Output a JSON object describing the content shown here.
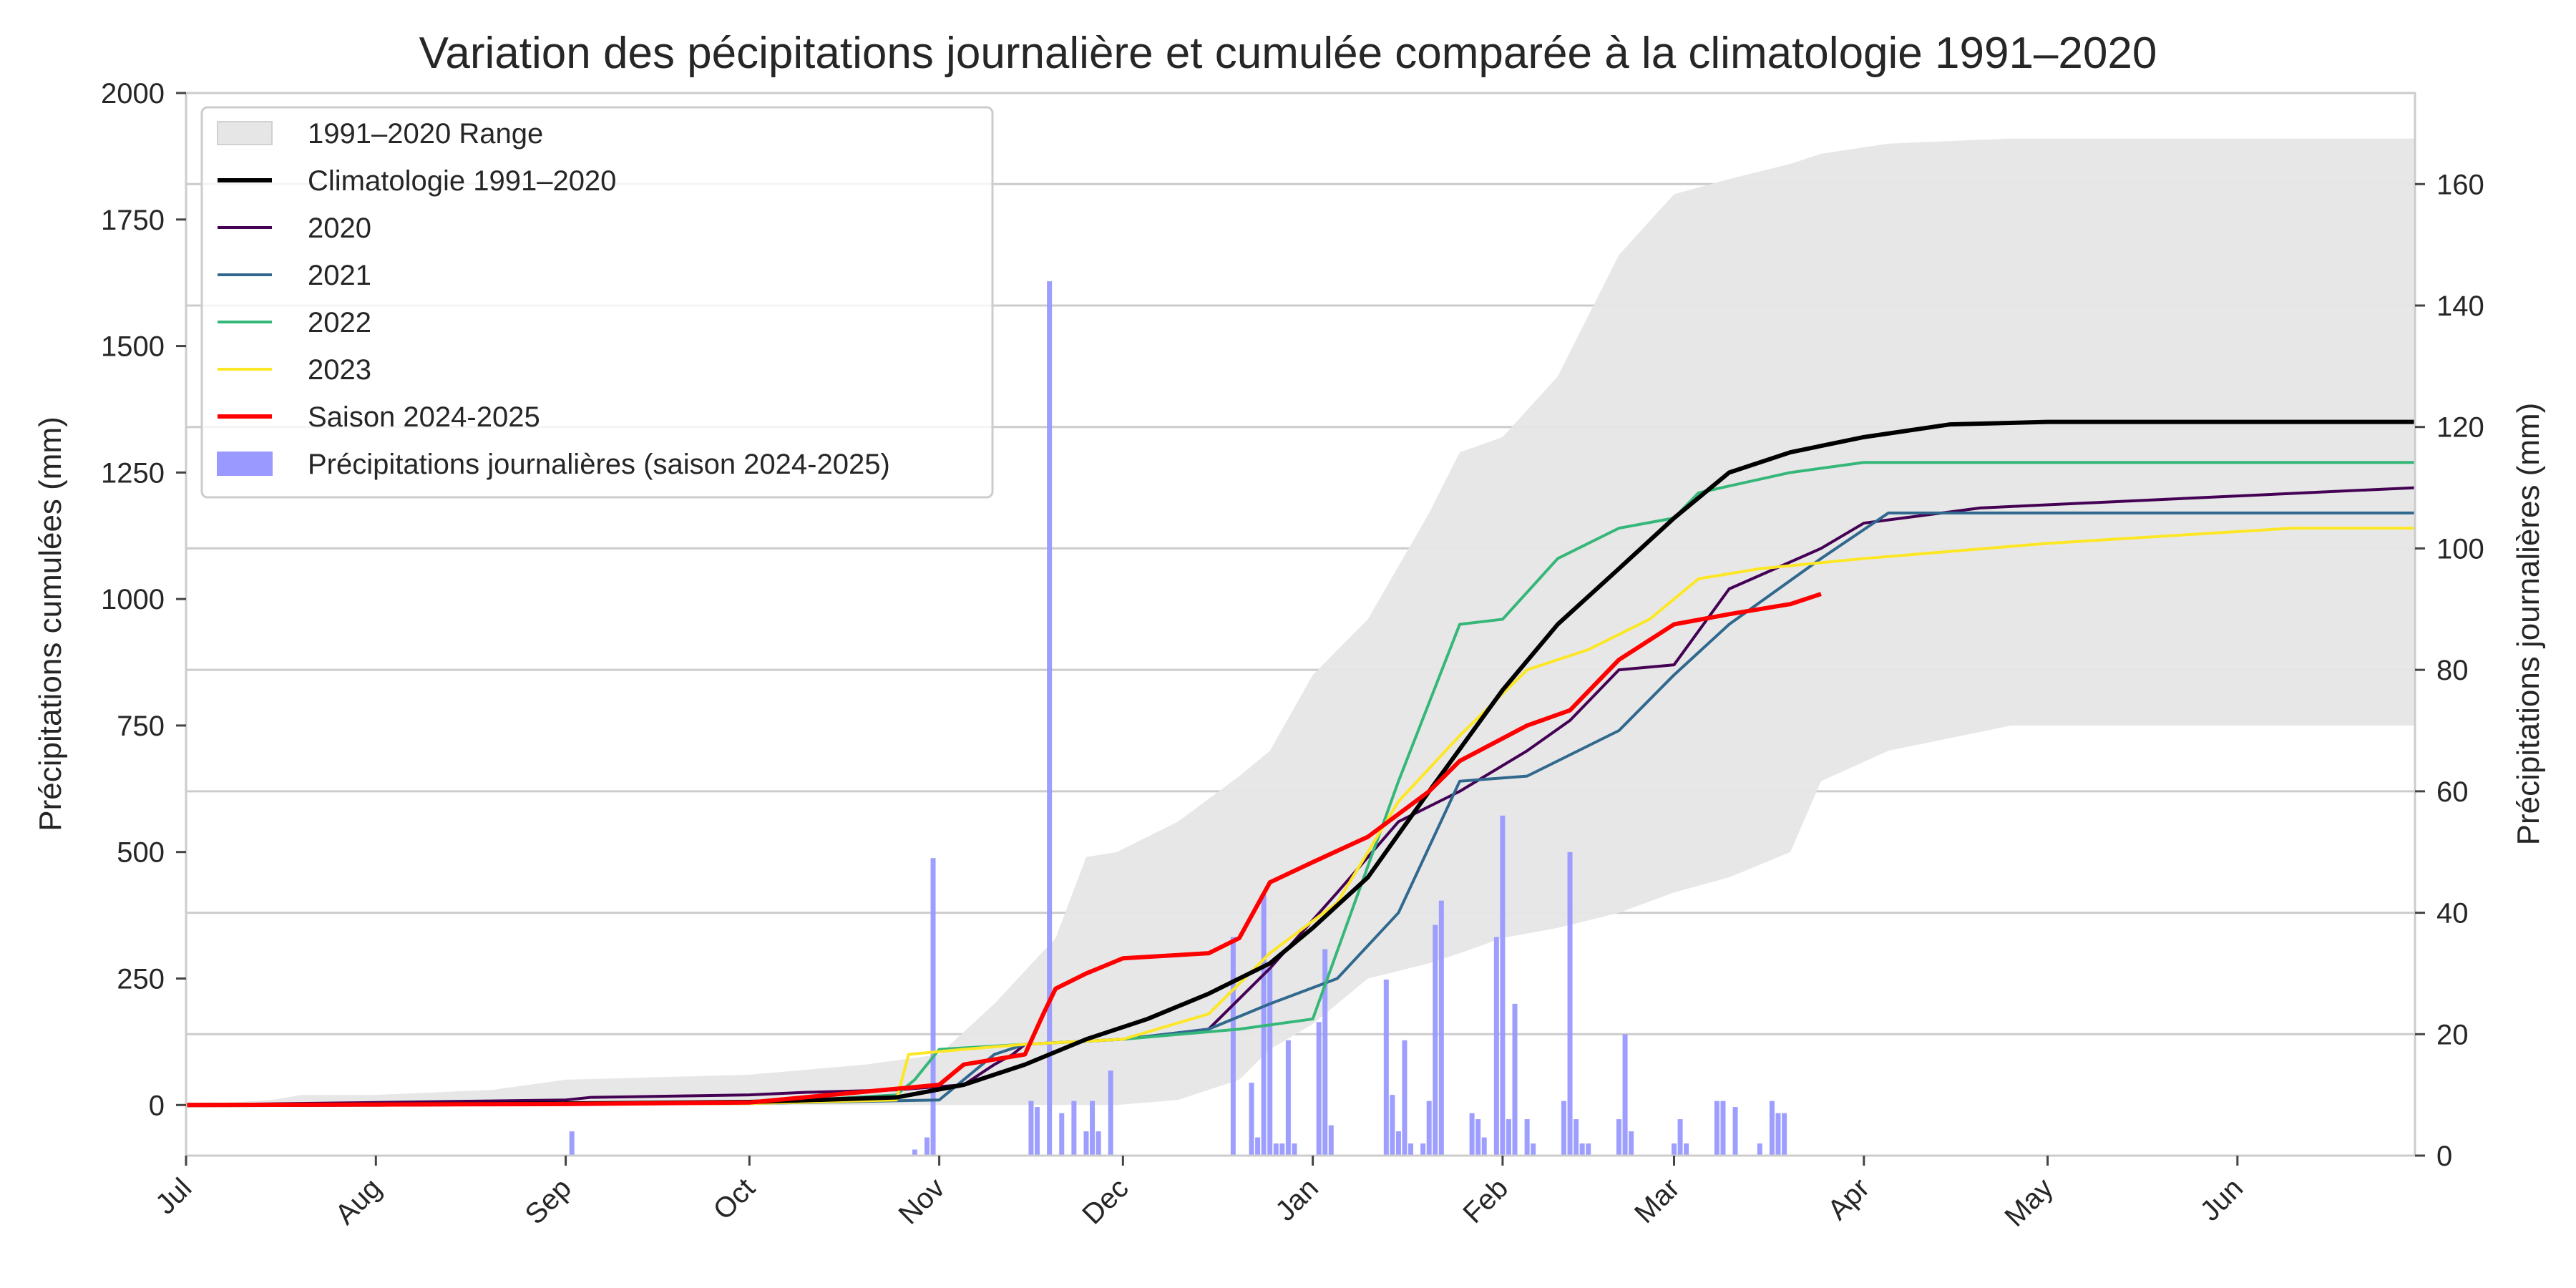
{
  "chart_data": {
    "type": "line",
    "title": "Variation des pécipitations journalière et cumulée comparée à la climatologie 1991–2020",
    "ylabel": "Précipitations cumulées (mm)",
    "y2label": "Précipitations journalières (mm)",
    "x_range": [
      "2024-07-01",
      "2025-06-30"
    ],
    "x_ticks": [
      {
        "date": "2024-07-01",
        "label": "Jul"
      },
      {
        "date": "2024-08-01",
        "label": "Aug"
      },
      {
        "date": "2024-09-01",
        "label": "Sep"
      },
      {
        "date": "2024-10-01",
        "label": "Oct"
      },
      {
        "date": "2024-11-01",
        "label": "Nov"
      },
      {
        "date": "2024-12-01",
        "label": "Dec"
      },
      {
        "date": "2025-01-01",
        "label": "Jan"
      },
      {
        "date": "2025-02-01",
        "label": "Feb"
      },
      {
        "date": "2025-03-01",
        "label": "Mar"
      },
      {
        "date": "2025-04-01",
        "label": "Apr"
      },
      {
        "date": "2025-05-01",
        "label": "May"
      },
      {
        "date": "2025-06-01",
        "label": "Jun"
      }
    ],
    "ylim": [
      -100,
      2000
    ],
    "y_ticks": [
      0,
      250,
      500,
      750,
      1000,
      1250,
      1500,
      1750,
      2000
    ],
    "y2lim": [
      0,
      175
    ],
    "y2_ticks": [
      0,
      20,
      40,
      60,
      80,
      100,
      120,
      140,
      160
    ],
    "grid": "on",
    "legend_position": "top-left",
    "range_band": {
      "name": "1991–2020 Range",
      "color": "#e6e6e6",
      "x": [
        "2024-07-01",
        "2024-07-15",
        "2024-07-20",
        "2024-08-01",
        "2024-08-20",
        "2024-09-01",
        "2024-10-01",
        "2024-10-20",
        "2024-11-01",
        "2024-11-10",
        "2024-11-20",
        "2024-11-25",
        "2024-11-30",
        "2024-12-10",
        "2024-12-20",
        "2024-12-25",
        "2025-01-01",
        "2025-01-10",
        "2025-01-20",
        "2025-01-25",
        "2025-02-01",
        "2025-02-10",
        "2025-02-20",
        "2025-03-01",
        "2025-03-10",
        "2025-03-20",
        "2025-03-25",
        "2025-04-05",
        "2025-04-25",
        "2025-05-10",
        "2025-06-30"
      ],
      "upper": [
        0,
        10,
        20,
        20,
        30,
        50,
        60,
        80,
        100,
        200,
        330,
        490,
        500,
        560,
        650,
        700,
        850,
        960,
        1170,
        1290,
        1320,
        1440,
        1680,
        1800,
        1830,
        1860,
        1880,
        1900,
        1910,
        1910,
        1910
      ],
      "lower": [
        0,
        0,
        0,
        0,
        0,
        0,
        0,
        0,
        0,
        0,
        0,
        0,
        0,
        10,
        50,
        110,
        160,
        250,
        280,
        300,
        330,
        350,
        380,
        420,
        450,
        500,
        640,
        700,
        750,
        750,
        750
      ]
    },
    "series": [
      {
        "name": "Climatologie 1991–2020",
        "color": "#000000",
        "width": 6,
        "x": [
          "2024-07-01",
          "2024-08-01",
          "2024-09-01",
          "2024-10-01",
          "2024-10-25",
          "2024-11-05",
          "2024-11-15",
          "2024-11-25",
          "2024-12-05",
          "2024-12-15",
          "2024-12-25",
          "2025-01-01",
          "2025-01-10",
          "2025-01-20",
          "2025-02-01",
          "2025-02-10",
          "2025-02-20",
          "2025-03-01",
          "2025-03-10",
          "2025-03-20",
          "2025-04-01",
          "2025-04-15",
          "2025-05-01",
          "2025-06-30"
        ],
        "y": [
          0,
          1,
          3,
          6,
          15,
          40,
          80,
          130,
          170,
          220,
          280,
          350,
          450,
          620,
          820,
          950,
          1060,
          1160,
          1250,
          1290,
          1320,
          1345,
          1350,
          1350
        ]
      },
      {
        "name": "2020",
        "color": "#440154",
        "width": 4,
        "x": [
          "2024-07-01",
          "2024-08-01",
          "2024-09-01",
          "2024-09-05",
          "2024-10-01",
          "2024-10-10",
          "2024-10-25",
          "2024-11-05",
          "2024-11-10",
          "2024-11-13",
          "2024-11-15",
          "2024-12-01",
          "2024-12-15",
          "2024-12-25",
          "2025-01-05",
          "2025-01-15",
          "2025-01-25",
          "2025-02-05",
          "2025-02-12",
          "2025-02-20",
          "2025-03-01",
          "2025-03-10",
          "2025-03-25",
          "2025-04-01",
          "2025-04-20",
          "2025-06-30"
        ],
        "y": [
          0,
          5,
          10,
          15,
          20,
          25,
          30,
          40,
          80,
          100,
          120,
          130,
          150,
          270,
          420,
          560,
          620,
          700,
          760,
          860,
          870,
          1020,
          1100,
          1150,
          1180,
          1220
        ]
      },
      {
        "name": "2021",
        "color": "#31688e",
        "width": 4,
        "x": [
          "2024-07-01",
          "2024-10-01",
          "2024-11-01",
          "2024-11-10",
          "2024-11-15",
          "2024-12-01",
          "2024-12-15",
          "2024-12-25",
          "2025-01-05",
          "2025-01-15",
          "2025-01-25",
          "2025-02-05",
          "2025-02-20",
          "2025-03-01",
          "2025-03-10",
          "2025-03-25",
          "2025-04-05",
          "2025-06-30"
        ],
        "y": [
          0,
          3,
          10,
          100,
          120,
          130,
          150,
          200,
          250,
          380,
          640,
          650,
          740,
          850,
          950,
          1080,
          1170,
          1170
        ]
      },
      {
        "name": "2022",
        "color": "#35b779",
        "width": 4,
        "x": [
          "2024-07-01",
          "2024-10-01",
          "2024-10-25",
          "2024-10-28",
          "2024-11-01",
          "2024-11-15",
          "2024-12-01",
          "2024-12-20",
          "2025-01-01",
          "2025-01-15",
          "2025-01-25",
          "2025-02-01",
          "2025-02-10",
          "2025-02-20",
          "2025-03-01",
          "2025-03-05",
          "2025-03-20",
          "2025-04-01",
          "2025-06-30"
        ],
        "y": [
          0,
          3,
          20,
          50,
          110,
          120,
          130,
          150,
          170,
          640,
          950,
          960,
          1080,
          1140,
          1160,
          1210,
          1250,
          1270,
          1270
        ]
      },
      {
        "name": "2023",
        "color": "#fde725",
        "width": 4,
        "x": [
          "2024-07-01",
          "2024-10-01",
          "2024-10-25",
          "2024-10-27",
          "2024-11-05",
          "2024-11-15",
          "2024-12-01",
          "2024-12-15",
          "2024-12-25",
          "2025-01-05",
          "2025-01-15",
          "2025-01-25",
          "2025-02-05",
          "2025-02-15",
          "2025-02-25",
          "2025-03-05",
          "2025-03-15",
          "2025-04-01",
          "2025-05-01",
          "2025-06-10",
          "2025-06-30"
        ],
        "y": [
          0,
          3,
          10,
          100,
          110,
          120,
          130,
          180,
          300,
          400,
          600,
          730,
          860,
          900,
          960,
          1040,
          1060,
          1080,
          1110,
          1140,
          1140
        ]
      },
      {
        "name": "Saison 2024-2025",
        "color": "#ff0000",
        "width": 6,
        "x": [
          "2024-07-01",
          "2024-08-01",
          "2024-09-01",
          "2024-10-01",
          "2024-11-01",
          "2024-11-05",
          "2024-11-15",
          "2024-11-18",
          "2024-11-20",
          "2024-11-25",
          "2024-12-01",
          "2024-12-15",
          "2024-12-20",
          "2024-12-25",
          "2025-01-01",
          "2025-01-10",
          "2025-01-20",
          "2025-01-25",
          "2025-02-05",
          "2025-02-12",
          "2025-02-20",
          "2025-03-01",
          "2025-03-10",
          "2025-03-20",
          "2025-03-25"
        ],
        "y": [
          0,
          1,
          2,
          5,
          40,
          80,
          100,
          180,
          230,
          260,
          290,
          300,
          330,
          440,
          480,
          530,
          620,
          680,
          750,
          780,
          880,
          950,
          970,
          990,
          1010
        ]
      }
    ],
    "bars": {
      "name": "Précipitations journalières (saison 2024-2025)",
      "color": "#9999ff",
      "axis": "y2",
      "x": [
        "2024-09-02",
        "2024-10-28",
        "2024-10-30",
        "2024-10-31",
        "2024-11-16",
        "2024-11-17",
        "2024-11-19",
        "2024-11-21",
        "2024-11-23",
        "2024-11-25",
        "2024-11-26",
        "2024-11-27",
        "2024-11-29",
        "2024-12-19",
        "2024-12-22",
        "2024-12-23",
        "2024-12-24",
        "2024-12-25",
        "2024-12-26",
        "2024-12-27",
        "2024-12-28",
        "2024-12-29",
        "2025-01-02",
        "2025-01-03",
        "2025-01-04",
        "2025-01-13",
        "2025-01-14",
        "2025-01-15",
        "2025-01-16",
        "2025-01-17",
        "2025-01-19",
        "2025-01-20",
        "2025-01-21",
        "2025-01-22",
        "2025-01-27",
        "2025-01-28",
        "2025-01-29",
        "2025-01-31",
        "2025-02-01",
        "2025-02-02",
        "2025-02-03",
        "2025-02-05",
        "2025-02-06",
        "2025-02-11",
        "2025-02-12",
        "2025-02-13",
        "2025-02-14",
        "2025-02-15",
        "2025-02-20",
        "2025-02-21",
        "2025-02-22",
        "2025-03-01",
        "2025-03-02",
        "2025-03-03",
        "2025-03-08",
        "2025-03-09",
        "2025-03-11",
        "2025-03-15",
        "2025-03-17",
        "2025-03-18",
        "2025-03-19"
      ],
      "values": [
        4,
        1,
        3,
        49,
        9,
        8,
        144,
        7,
        9,
        4,
        9,
        4,
        14,
        36,
        12,
        3,
        43,
        31,
        2,
        2,
        19,
        2,
        22,
        34,
        5,
        29,
        10,
        4,
        19,
        2,
        2,
        9,
        38,
        42,
        7,
        6,
        3,
        36,
        56,
        6,
        25,
        6,
        2,
        9,
        50,
        6,
        2,
        2,
        6,
        20,
        4,
        2,
        6,
        2,
        9,
        9,
        8,
        2,
        9,
        7,
        7
      ]
    }
  }
}
